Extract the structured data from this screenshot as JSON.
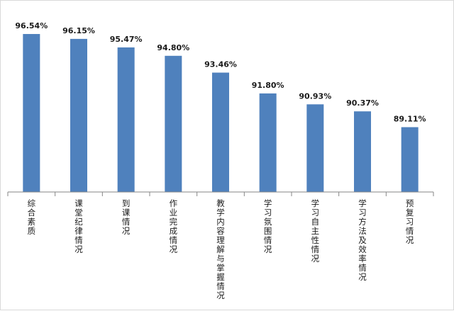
{
  "chart_data": {
    "type": "bar",
    "categories": [
      "综合素质",
      "课堂纪律情况",
      "到课情况",
      "作业完成情况",
      "教学内容理解与掌握情况",
      "学习氛围情况",
      "学习自主性情况",
      "学习方法及效率情况",
      "预复习情况"
    ],
    "values": [
      96.54,
      96.15,
      95.47,
      94.8,
      93.46,
      91.8,
      90.93,
      90.37,
      89.11
    ],
    "value_labels": [
      "96.54%",
      "96.15%",
      "95.47%",
      "94.80%",
      "93.46%",
      "91.80%",
      "90.93%",
      "90.37%",
      "89.11%"
    ],
    "unit": "%",
    "title": "",
    "xlabel": "",
    "ylabel": "",
    "ylim": [
      83.94,
      97.5
    ],
    "grid": false,
    "legend": "none",
    "bar_color": "#4F81BD",
    "axis_color": "#868686"
  }
}
